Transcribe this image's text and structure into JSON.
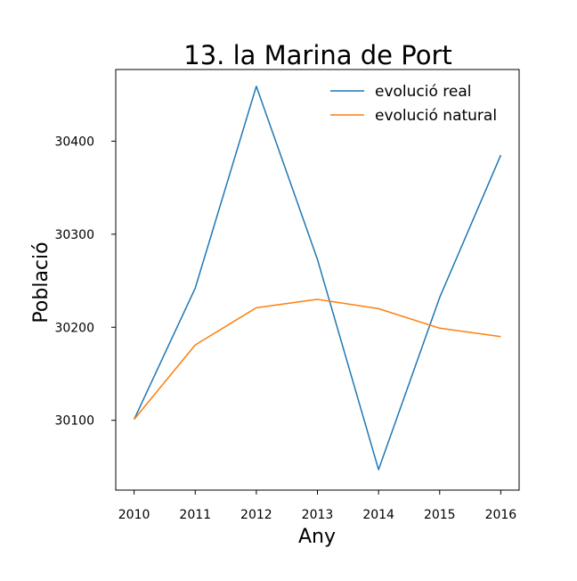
{
  "chart_data": {
    "type": "line",
    "title": "13. la Marina de Port",
    "xlabel": "Any",
    "ylabel": "Població",
    "x": [
      2010,
      2011,
      2012,
      2013,
      2014,
      2015,
      2016
    ],
    "x_tick_labels": [
      "2010",
      "2011",
      "2012",
      "2013",
      "2014",
      "2015",
      "2016"
    ],
    "y_ticks": [
      30100,
      30200,
      30300,
      30400
    ],
    "y_tick_labels": [
      "30100",
      "30200",
      "30300",
      "30400"
    ],
    "ylim": [
      30025,
      30477
    ],
    "xlim": [
      2009.7,
      2016.3
    ],
    "grid": false,
    "legend_position": "top-right",
    "series": [
      {
        "name": "evolució real",
        "color": "#1f77b4",
        "values": [
          30101,
          30242,
          30459,
          30273,
          30047,
          30232,
          30385
        ]
      },
      {
        "name": "evolució natural",
        "color": "#ff7f0e",
        "values": [
          30101,
          30181,
          30221,
          30230,
          30220,
          30199,
          30190
        ]
      }
    ]
  }
}
